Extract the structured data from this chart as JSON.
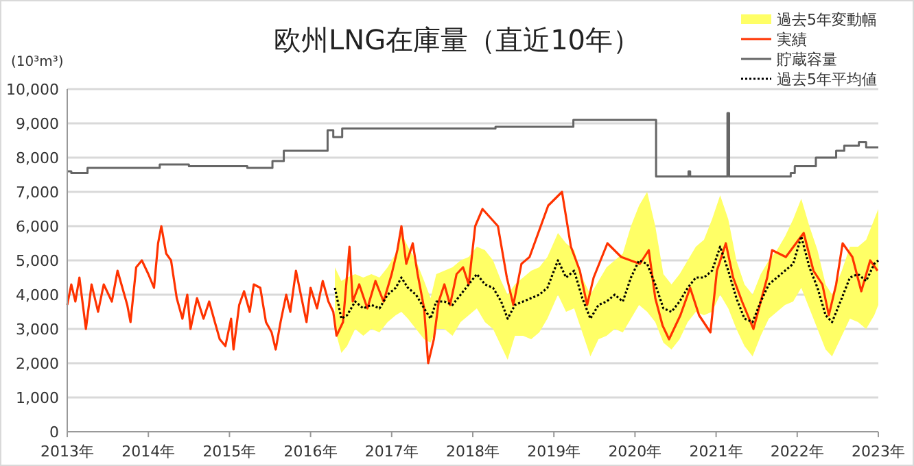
{
  "chart_data": {
    "type": "line",
    "title": "欧州LNG在庫量（直近10年）",
    "ylabel": "(10³m³)",
    "xlim": [
      2013,
      2023
    ],
    "xticks": [
      {
        "value": 2013,
        "label": "2013年"
      },
      {
        "value": 2014,
        "label": "2014年"
      },
      {
        "value": 2015,
        "label": "2015年"
      },
      {
        "value": 2016,
        "label": "2016年"
      },
      {
        "value": 2017,
        "label": "2017年"
      },
      {
        "value": 2018,
        "label": "2018年"
      },
      {
        "value": 2019,
        "label": "2019年"
      },
      {
        "value": 2020,
        "label": "2020年"
      },
      {
        "value": 2021,
        "label": "2021年"
      },
      {
        "value": 2022,
        "label": "2022年"
      },
      {
        "value": 2023,
        "label": "2023年"
      }
    ],
    "ylim": [
      0,
      10000
    ],
    "yticks": [
      0,
      {
        "value": 1000,
        "label": "1,000"
      },
      {
        "value": 2000,
        "label": "2,000"
      },
      {
        "value": 3000,
        "label": "3,000"
      },
      {
        "value": 4000,
        "label": "4,000"
      },
      {
        "value": 5000,
        "label": "5,000"
      },
      {
        "value": 6000,
        "label": "6,000"
      },
      {
        "value": 7000,
        "label": "7,000"
      },
      {
        "value": 8000,
        "label": "8,000"
      },
      {
        "value": 9000,
        "label": "9,000"
      },
      {
        "value": 10000,
        "label": "10,000"
      }
    ],
    "grid": "y",
    "legend": "top right",
    "series": [
      {
        "name": "過去5年変動幅",
        "type": "area",
        "color": "#ffff66",
        "values": [
          null,
          null,
          null,
          null,
          null,
          null,
          null,
          null,
          null,
          null,
          null,
          null,
          null,
          null,
          null,
          null,
          null,
          null,
          null,
          null,
          null,
          null,
          null,
          null,
          null,
          null,
          null,
          null,
          null,
          null,
          null,
          null,
          null,
          null,
          null,
          null,
          null,
          null,
          null,
          null,
          null,
          null,
          null,
          null,
          null,
          null,
          null,
          null,
          null,
          null,
          null,
          null,
          null,
          null,
          null,
          null,
          null,
          null,
          null,
          null,
          null,
          null,
          null,
          null,
          null,
          null,
          null,
          null,
          null,
          null
        ],
        "x": [
          2016.3,
          2016.38,
          2016.45,
          2016.55,
          2016.65,
          2016.75,
          2016.85,
          2016.95,
          2017.05,
          2017.12,
          2017.2,
          2017.3,
          2017.4,
          2017.48,
          2017.55,
          2017.65,
          2017.75,
          2017.85,
          2017.95,
          2018.05,
          2018.15,
          2018.25,
          2018.35,
          2018.43,
          2018.52,
          2018.62,
          2018.72,
          2018.82,
          2018.92,
          2019.05,
          2019.15,
          2019.25,
          2019.35,
          2019.45,
          2019.55,
          2019.65,
          2019.75,
          2019.85,
          2019.95,
          2020.05,
          2020.15,
          2020.25,
          2020.35,
          2020.45,
          2020.55,
          2020.65,
          2020.75,
          2020.85,
          2020.95,
          2021.05,
          2021.15,
          2021.25,
          2021.35,
          2021.45,
          2021.55,
          2021.65,
          2021.75,
          2021.85,
          2021.95,
          2022.05,
          2022.15,
          2022.25,
          2022.35,
          2022.43,
          2022.55,
          2022.65,
          2022.75,
          2022.85,
          2022.95,
          2023.0
        ],
        "lower": [
          3000,
          2300,
          2500,
          3000,
          2800,
          3000,
          2900,
          3200,
          3400,
          3500,
          3300,
          3000,
          2700,
          2600,
          3000,
          3000,
          2800,
          3200,
          3400,
          3600,
          3200,
          3000,
          2500,
          2100,
          2800,
          2800,
          2700,
          2900,
          3300,
          4000,
          3500,
          3600,
          2900,
          2200,
          2700,
          2800,
          3000,
          2900,
          3300,
          3700,
          3500,
          3200,
          2600,
          2400,
          2700,
          3200,
          3500,
          3400,
          3500,
          4000,
          3600,
          3000,
          2500,
          2200,
          2800,
          3300,
          3500,
          3700,
          3800,
          4200,
          3600,
          3000,
          2400,
          2200,
          2800,
          3300,
          3200,
          3000,
          3400,
          3700
        ],
        "upper": [
          4800,
          4400,
          4500,
          4600,
          4500,
          4600,
          4500,
          4800,
          5200,
          5800,
          5400,
          5000,
          4400,
          3900,
          4600,
          4700,
          4800,
          5000,
          5100,
          5400,
          5300,
          5000,
          4400,
          4000,
          4300,
          4500,
          4700,
          4800,
          5100,
          5800,
          5500,
          5300,
          4500,
          4000,
          4400,
          4800,
          5000,
          5200,
          6000,
          6600,
          7000,
          6000,
          4600,
          4300,
          4600,
          5000,
          5400,
          5600,
          6200,
          6900,
          6200,
          5000,
          4300,
          4000,
          4600,
          5000,
          5300,
          5700,
          6200,
          6800,
          6000,
          5300,
          4300,
          4000,
          4700,
          5400,
          5400,
          5600,
          6200,
          6500
        ]
      },
      {
        "name": "実績",
        "color": "#ff3300",
        "line_style": "solid",
        "x": [
          2013.0,
          2013.05,
          2013.1,
          2013.15,
          2013.23,
          2013.3,
          2013.38,
          2013.45,
          2013.55,
          2013.62,
          2013.68,
          2013.74,
          2013.78,
          2013.85,
          2013.92,
          2014.0,
          2014.07,
          2014.12,
          2014.16,
          2014.22,
          2014.28,
          2014.35,
          2014.42,
          2014.48,
          2014.52,
          2014.6,
          2014.68,
          2014.75,
          2014.82,
          2014.88,
          2014.95,
          2015.02,
          2015.05,
          2015.12,
          2015.18,
          2015.25,
          2015.3,
          2015.38,
          2015.45,
          2015.52,
          2015.57,
          2015.63,
          2015.7,
          2015.75,
          2015.82,
          2015.88,
          2015.95,
          2016.0,
          2016.08,
          2016.15,
          2016.22,
          2016.28,
          2016.32,
          2016.4,
          2016.48,
          2016.52,
          2016.6,
          2016.7,
          2016.8,
          2016.9,
          2017.0,
          2017.07,
          2017.12,
          2017.18,
          2017.26,
          2017.32,
          2017.4,
          2017.45,
          2017.52,
          2017.58,
          2017.65,
          2017.72,
          2017.8,
          2017.88,
          2017.95,
          2018.03,
          2018.12,
          2018.31,
          2018.42,
          2018.5,
          2018.6,
          2018.7,
          2018.93,
          2019.1,
          2019.21,
          2019.32,
          2019.41,
          2019.49,
          2019.66,
          2019.83,
          2020.06,
          2020.17,
          2020.25,
          2020.34,
          2020.42,
          2020.56,
          2020.68,
          2020.79,
          2020.93,
          2021.01,
          2021.12,
          2021.21,
          2021.32,
          2021.46,
          2021.63,
          2021.69,
          2021.86,
          2022.08,
          2022.2,
          2022.31,
          2022.39,
          2022.48,
          2022.56,
          2022.68,
          2022.79,
          2022.9,
          2022.99
        ],
        "values": [
          3700,
          4300,
          3800,
          4500,
          3000,
          4300,
          3500,
          4300,
          3800,
          4700,
          4200,
          3700,
          3200,
          4800,
          5000,
          4600,
          4200,
          5500,
          6000,
          5200,
          5000,
          3900,
          3300,
          4000,
          3000,
          3900,
          3300,
          3800,
          3200,
          2700,
          2500,
          3300,
          2400,
          3700,
          4100,
          3500,
          4300,
          4200,
          3200,
          2900,
          2400,
          3200,
          4000,
          3500,
          4700,
          4000,
          3200,
          4200,
          3600,
          4400,
          3800,
          3500,
          2800,
          3200,
          5400,
          3800,
          4300,
          3600,
          4400,
          3800,
          4600,
          5300,
          6000,
          4900,
          5500,
          4600,
          3600,
          2000,
          2700,
          3800,
          4300,
          3700,
          4600,
          4800,
          4300,
          6000,
          6500,
          6000,
          4500,
          3700,
          4900,
          5100,
          6600,
          7000,
          5400,
          4700,
          3700,
          4500,
          5500,
          5100,
          4900,
          5300,
          3900,
          3100,
          2700,
          3400,
          4200,
          3400,
          2900,
          4700,
          5500,
          4500,
          3800,
          3000,
          4500,
          5300,
          5100,
          5800,
          4700,
          4300,
          3400,
          4300,
          5500,
          5100,
          4100,
          5000,
          4700
        ]
      },
      {
        "name": "貯蔵容量",
        "type": "step",
        "color": "#666666",
        "line_style": "solid",
        "x": [
          2013.0,
          2013.05,
          2013.25,
          2014.14,
          2014.5,
          2015.22,
          2015.53,
          2015.67,
          2016.21,
          2016.28,
          2016.39,
          2018.28,
          2019.24,
          2020.26,
          2020.66,
          2020.68,
          2021.14,
          2021.16,
          2021.92,
          2021.97,
          2022.23,
          2022.48,
          2022.58,
          2022.76,
          2022.85,
          2023.0
        ],
        "values": [
          7600,
          7550,
          7700,
          7800,
          7750,
          7700,
          7900,
          8200,
          8800,
          8600,
          8850,
          8900,
          9100,
          7450,
          7600,
          7450,
          9300,
          7450,
          7550,
          7750,
          8000,
          8200,
          8350,
          8450,
          8300,
          8300
        ]
      },
      {
        "name": "過去5年平均値",
        "color": "#000000",
        "line_style": "dotted",
        "x": [
          2016.3,
          2016.38,
          2016.45,
          2016.55,
          2016.65,
          2016.75,
          2016.85,
          2016.95,
          2017.05,
          2017.12,
          2017.2,
          2017.3,
          2017.4,
          2017.48,
          2017.55,
          2017.65,
          2017.75,
          2017.85,
          2017.95,
          2018.05,
          2018.15,
          2018.25,
          2018.35,
          2018.43,
          2018.52,
          2018.62,
          2018.72,
          2018.82,
          2018.92,
          2019.05,
          2019.15,
          2019.25,
          2019.35,
          2019.45,
          2019.55,
          2019.65,
          2019.75,
          2019.85,
          2019.95,
          2020.05,
          2020.15,
          2020.25,
          2020.35,
          2020.45,
          2020.55,
          2020.65,
          2020.75,
          2020.85,
          2020.95,
          2021.05,
          2021.15,
          2021.25,
          2021.35,
          2021.45,
          2021.55,
          2021.65,
          2021.75,
          2021.85,
          2021.95,
          2022.05,
          2022.15,
          2022.25,
          2022.35,
          2022.43,
          2022.55,
          2022.65,
          2022.75,
          2022.85,
          2022.95,
          2023.0
        ],
        "values": [
          4200,
          3300,
          3400,
          3800,
          3600,
          3700,
          3600,
          4000,
          4200,
          4500,
          4200,
          4000,
          3600,
          3300,
          3800,
          3800,
          3700,
          4000,
          4300,
          4600,
          4300,
          4200,
          3800,
          3300,
          3700,
          3800,
          3900,
          4000,
          4200,
          5000,
          4500,
          4700,
          3900,
          3300,
          3700,
          3800,
          4000,
          3800,
          4500,
          5000,
          4900,
          4300,
          3600,
          3500,
          3800,
          4200,
          4500,
          4500,
          4700,
          5400,
          4700,
          3900,
          3300,
          3200,
          3800,
          4300,
          4500,
          4700,
          4900,
          5700,
          4800,
          4200,
          3400,
          3200,
          3900,
          4500,
          4600,
          4400,
          4900,
          5000
        ]
      }
    ]
  }
}
